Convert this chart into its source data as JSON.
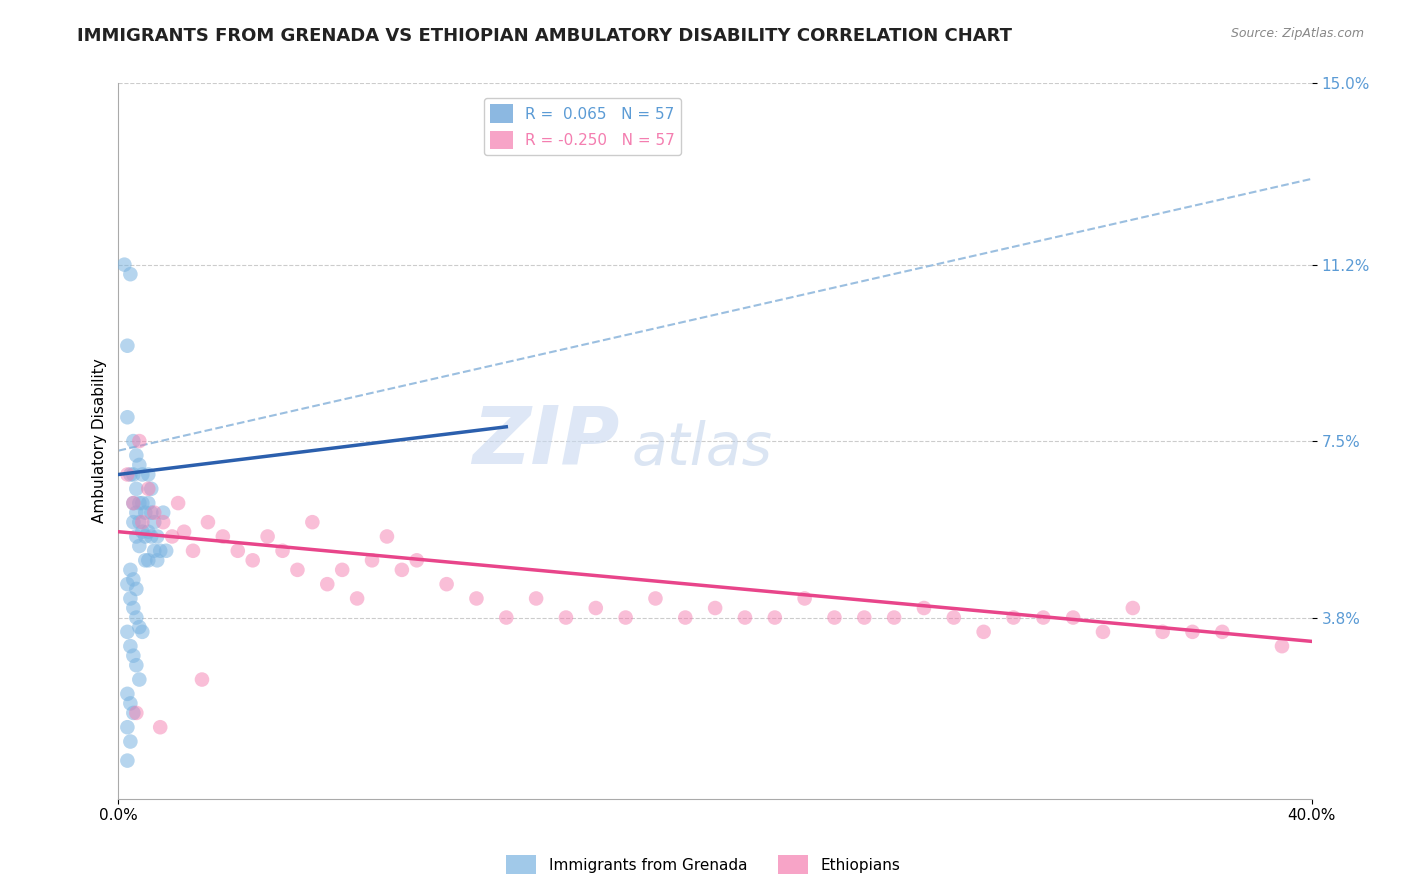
{
  "title": "IMMIGRANTS FROM GRENADA VS ETHIOPIAN AMBULATORY DISABILITY CORRELATION CHART",
  "source": "Source: ZipAtlas.com",
  "ylabel": "Ambulatory Disability",
  "xmin": 0.0,
  "xmax": 0.4,
  "ymin": 0.0,
  "ymax": 0.15,
  "yticks": [
    0.038,
    0.075,
    0.112,
    0.15
  ],
  "ytick_labels": [
    "3.8%",
    "7.5%",
    "11.2%",
    "15.0%"
  ],
  "xticks": [
    0.0,
    0.4
  ],
  "xtick_labels": [
    "0.0%",
    "40.0%"
  ],
  "legend_entries": [
    {
      "label": "R =  0.065   N = 57",
      "color": "#5b9bd5"
    },
    {
      "label": "R = -0.250   N = 57",
      "color": "#f47eb0"
    }
  ],
  "scatter_blue": {
    "color": "#7ab3e0",
    "alpha": 0.55,
    "size": 110,
    "x": [
      0.002,
      0.003,
      0.003,
      0.004,
      0.004,
      0.005,
      0.005,
      0.005,
      0.005,
      0.006,
      0.006,
      0.006,
      0.006,
      0.007,
      0.007,
      0.007,
      0.007,
      0.008,
      0.008,
      0.008,
      0.009,
      0.009,
      0.009,
      0.01,
      0.01,
      0.01,
      0.01,
      0.011,
      0.011,
      0.011,
      0.012,
      0.012,
      0.013,
      0.013,
      0.014,
      0.015,
      0.016,
      0.003,
      0.004,
      0.005,
      0.006,
      0.007,
      0.008,
      0.003,
      0.004,
      0.005,
      0.006,
      0.007,
      0.004,
      0.005,
      0.006,
      0.003,
      0.004,
      0.005,
      0.003,
      0.004,
      0.003
    ],
    "y": [
      0.112,
      0.095,
      0.08,
      0.11,
      0.068,
      0.075,
      0.068,
      0.062,
      0.058,
      0.072,
      0.065,
      0.06,
      0.055,
      0.07,
      0.062,
      0.058,
      0.053,
      0.068,
      0.062,
      0.056,
      0.06,
      0.055,
      0.05,
      0.068,
      0.062,
      0.056,
      0.05,
      0.065,
      0.06,
      0.055,
      0.058,
      0.052,
      0.055,
      0.05,
      0.052,
      0.06,
      0.052,
      0.045,
      0.042,
      0.04,
      0.038,
      0.036,
      0.035,
      0.035,
      0.032,
      0.03,
      0.028,
      0.025,
      0.048,
      0.046,
      0.044,
      0.022,
      0.02,
      0.018,
      0.015,
      0.012,
      0.008
    ]
  },
  "scatter_pink": {
    "color": "#f47eb0",
    "alpha": 0.5,
    "size": 110,
    "x": [
      0.003,
      0.005,
      0.007,
      0.008,
      0.01,
      0.012,
      0.015,
      0.018,
      0.02,
      0.022,
      0.025,
      0.03,
      0.035,
      0.04,
      0.045,
      0.05,
      0.055,
      0.06,
      0.065,
      0.07,
      0.075,
      0.08,
      0.085,
      0.09,
      0.095,
      0.1,
      0.11,
      0.12,
      0.13,
      0.14,
      0.15,
      0.16,
      0.17,
      0.18,
      0.19,
      0.2,
      0.21,
      0.22,
      0.23,
      0.24,
      0.25,
      0.26,
      0.27,
      0.28,
      0.29,
      0.3,
      0.31,
      0.32,
      0.33,
      0.34,
      0.35,
      0.36,
      0.37,
      0.006,
      0.014,
      0.028,
      0.39
    ],
    "y": [
      0.068,
      0.062,
      0.075,
      0.058,
      0.065,
      0.06,
      0.058,
      0.055,
      0.062,
      0.056,
      0.052,
      0.058,
      0.055,
      0.052,
      0.05,
      0.055,
      0.052,
      0.048,
      0.058,
      0.045,
      0.048,
      0.042,
      0.05,
      0.055,
      0.048,
      0.05,
      0.045,
      0.042,
      0.038,
      0.042,
      0.038,
      0.04,
      0.038,
      0.042,
      0.038,
      0.04,
      0.038,
      0.038,
      0.042,
      0.038,
      0.038,
      0.038,
      0.04,
      0.038,
      0.035,
      0.038,
      0.038,
      0.038,
      0.035,
      0.04,
      0.035,
      0.035,
      0.035,
      0.018,
      0.015,
      0.025,
      0.032
    ]
  },
  "trendline_blue": {
    "x_start": 0.0,
    "x_end": 0.13,
    "y_start": 0.068,
    "y_end": 0.078,
    "color": "#2b5fad",
    "linewidth": 2.5,
    "linestyle": "-"
  },
  "trendline_pink": {
    "x_start": 0.0,
    "x_end": 0.4,
    "y_start": 0.056,
    "y_end": 0.033,
    "color": "#e8458a",
    "linewidth": 2.5,
    "linestyle": "-"
  },
  "trendline_blue_dashed": {
    "x_start": 0.0,
    "x_end": 0.4,
    "y_start": 0.073,
    "y_end": 0.13,
    "color": "#9bbfe0",
    "linewidth": 1.5,
    "linestyle": "--"
  },
  "background_color": "#ffffff",
  "grid_color": "#cccccc",
  "title_fontsize": 13,
  "axis_label_fontsize": 11,
  "tick_fontsize": 11
}
